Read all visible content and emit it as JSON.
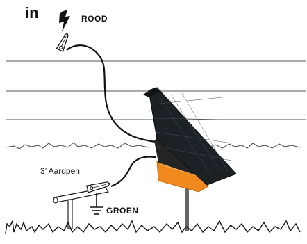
{
  "labels": {
    "in": "in",
    "live_wire": "ROOD",
    "ground_rod": "3’ Aardpen",
    "ground_wire": "GROEN"
  },
  "icons": {
    "lightning": "lightning-bolt-icon",
    "ground": "ground-symbol-icon",
    "live_clip": "alligator-clip-icon",
    "ground_clip": "alligator-clip-icon",
    "energizer": "solar-fence-energizer-icon"
  },
  "colors": {
    "wire": "#111111",
    "fence_line": "#555555",
    "solar_panel": "#1c2126",
    "energizer_body": "#242424",
    "energizer_base": "#f08a1f",
    "post": "#666666"
  }
}
